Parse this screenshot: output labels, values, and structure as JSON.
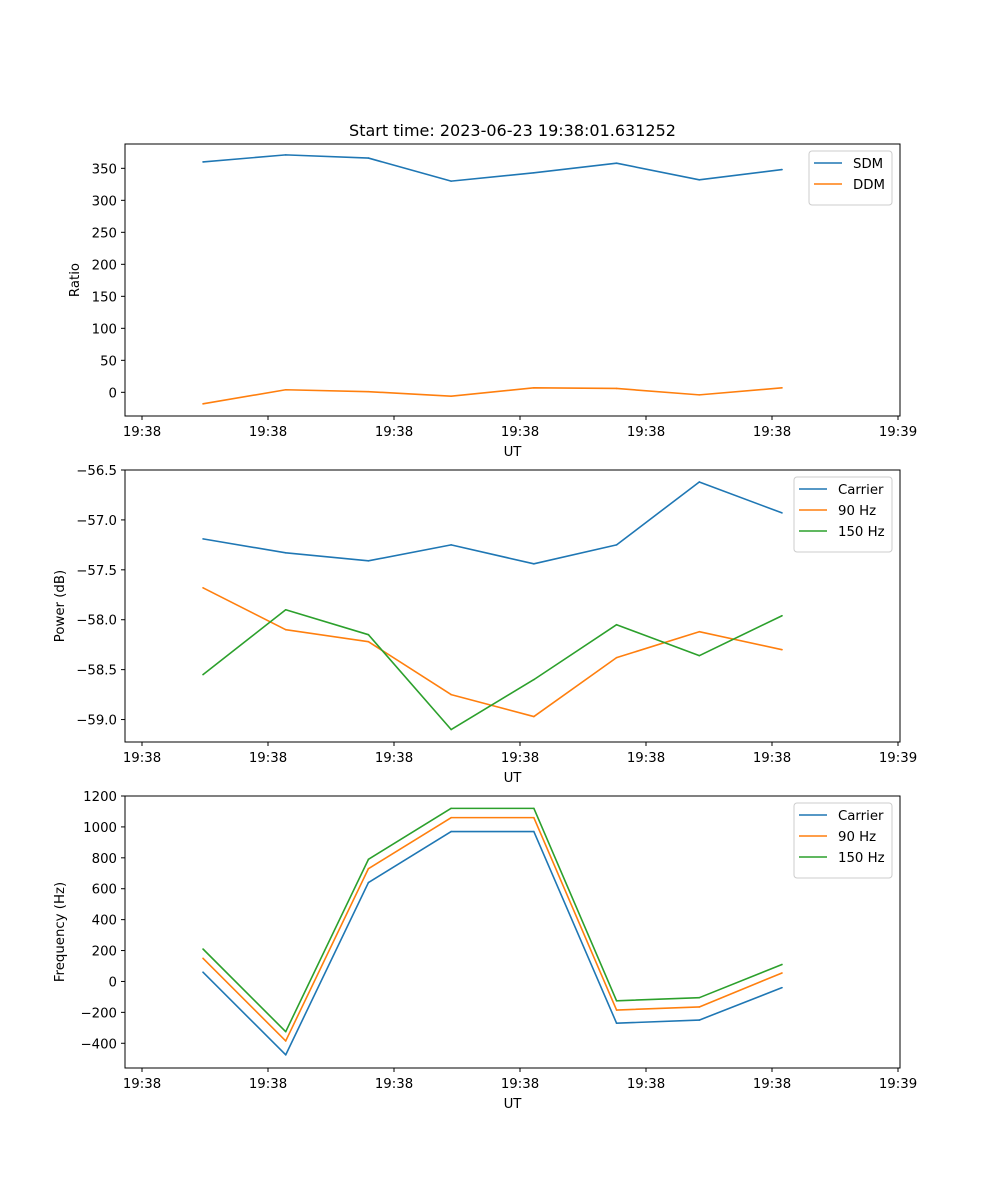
{
  "figure": {
    "title": "Start time: 2023-06-23 19:38:01.631252"
  },
  "colors": {
    "blue": "#1f77b4",
    "orange": "#ff7f0e",
    "green": "#2ca02c"
  },
  "chart_data": [
    {
      "type": "line",
      "title": "Start time: 2023-06-23 19:38:01.631252",
      "xlabel": "UT",
      "ylabel": "Ratio",
      "x_tick_labels": [
        "19:38",
        "19:38",
        "19:38",
        "19:38",
        "19:38",
        "19:38",
        "19:39"
      ],
      "x": [
        1,
        2,
        3,
        4,
        5,
        6,
        7,
        8
      ],
      "xlim": [
        0.4,
        8.95
      ],
      "yticks": [
        0,
        50,
        100,
        150,
        200,
        250,
        300,
        350
      ],
      "ylim": [
        -37,
        388
      ],
      "legend_position": "upper right",
      "series": [
        {
          "name": "SDM",
          "color": "blue",
          "values": [
            360,
            371,
            366,
            330,
            343,
            358,
            332,
            348
          ]
        },
        {
          "name": "DDM",
          "color": "orange",
          "values": [
            -18,
            4,
            1,
            -6,
            7,
            6,
            -4,
            7
          ]
        }
      ]
    },
    {
      "type": "line",
      "xlabel": "UT",
      "ylabel": "Power (dB)",
      "x_tick_labels": [
        "19:38",
        "19:38",
        "19:38",
        "19:38",
        "19:38",
        "19:38",
        "19:39"
      ],
      "x": [
        1,
        2,
        3,
        4,
        5,
        6,
        7,
        8
      ],
      "xlim": [
        0.4,
        8.95
      ],
      "yticks": [
        -59.0,
        -58.5,
        -58.0,
        -57.5,
        -57.0,
        -56.5
      ],
      "ytick_labels": [
        "−59.0",
        "−58.5",
        "−58.0",
        "−57.5",
        "−57.0",
        "−56.5"
      ],
      "ylim": [
        -59.225,
        -56.5
      ],
      "legend_position": "upper right",
      "series": [
        {
          "name": "Carrier",
          "color": "blue",
          "values": [
            -57.19,
            -57.33,
            -57.41,
            -57.25,
            -57.44,
            -57.25,
            -56.62,
            -56.93
          ]
        },
        {
          "name": "90 Hz",
          "color": "orange",
          "values": [
            -57.68,
            -58.1,
            -58.22,
            -58.75,
            -58.97,
            -58.38,
            -58.12,
            -58.3
          ]
        },
        {
          "name": "150 Hz",
          "color": "green",
          "values": [
            -58.55,
            -57.9,
            -58.15,
            -59.1,
            -58.6,
            -58.05,
            -58.36,
            -57.96
          ]
        }
      ]
    },
    {
      "type": "line",
      "xlabel": "UT",
      "ylabel": "Frequency (Hz)",
      "x_tick_labels": [
        "19:38",
        "19:38",
        "19:38",
        "19:38",
        "19:38",
        "19:38",
        "19:39"
      ],
      "x": [
        1,
        2,
        3,
        4,
        5,
        6,
        7,
        8
      ],
      "xlim": [
        0.4,
        8.95
      ],
      "yticks": [
        -400,
        -200,
        0,
        200,
        400,
        600,
        800,
        1000,
        1200
      ],
      "ytick_labels": [
        "−400",
        "−200",
        "0",
        "200",
        "400",
        "600",
        "800",
        "1000",
        "1200"
      ],
      "ylim": [
        -560,
        1200
      ],
      "legend_position": "upper right",
      "series": [
        {
          "name": "Carrier",
          "color": "blue",
          "values": [
            60,
            -475,
            640,
            970,
            970,
            -270,
            -250,
            -40
          ]
        },
        {
          "name": "90 Hz",
          "color": "orange",
          "values": [
            150,
            -385,
            730,
            1060,
            1060,
            -185,
            -165,
            55
          ]
        },
        {
          "name": "150 Hz",
          "color": "green",
          "values": [
            210,
            -325,
            790,
            1120,
            1120,
            -125,
            -105,
            110
          ]
        }
      ]
    }
  ]
}
